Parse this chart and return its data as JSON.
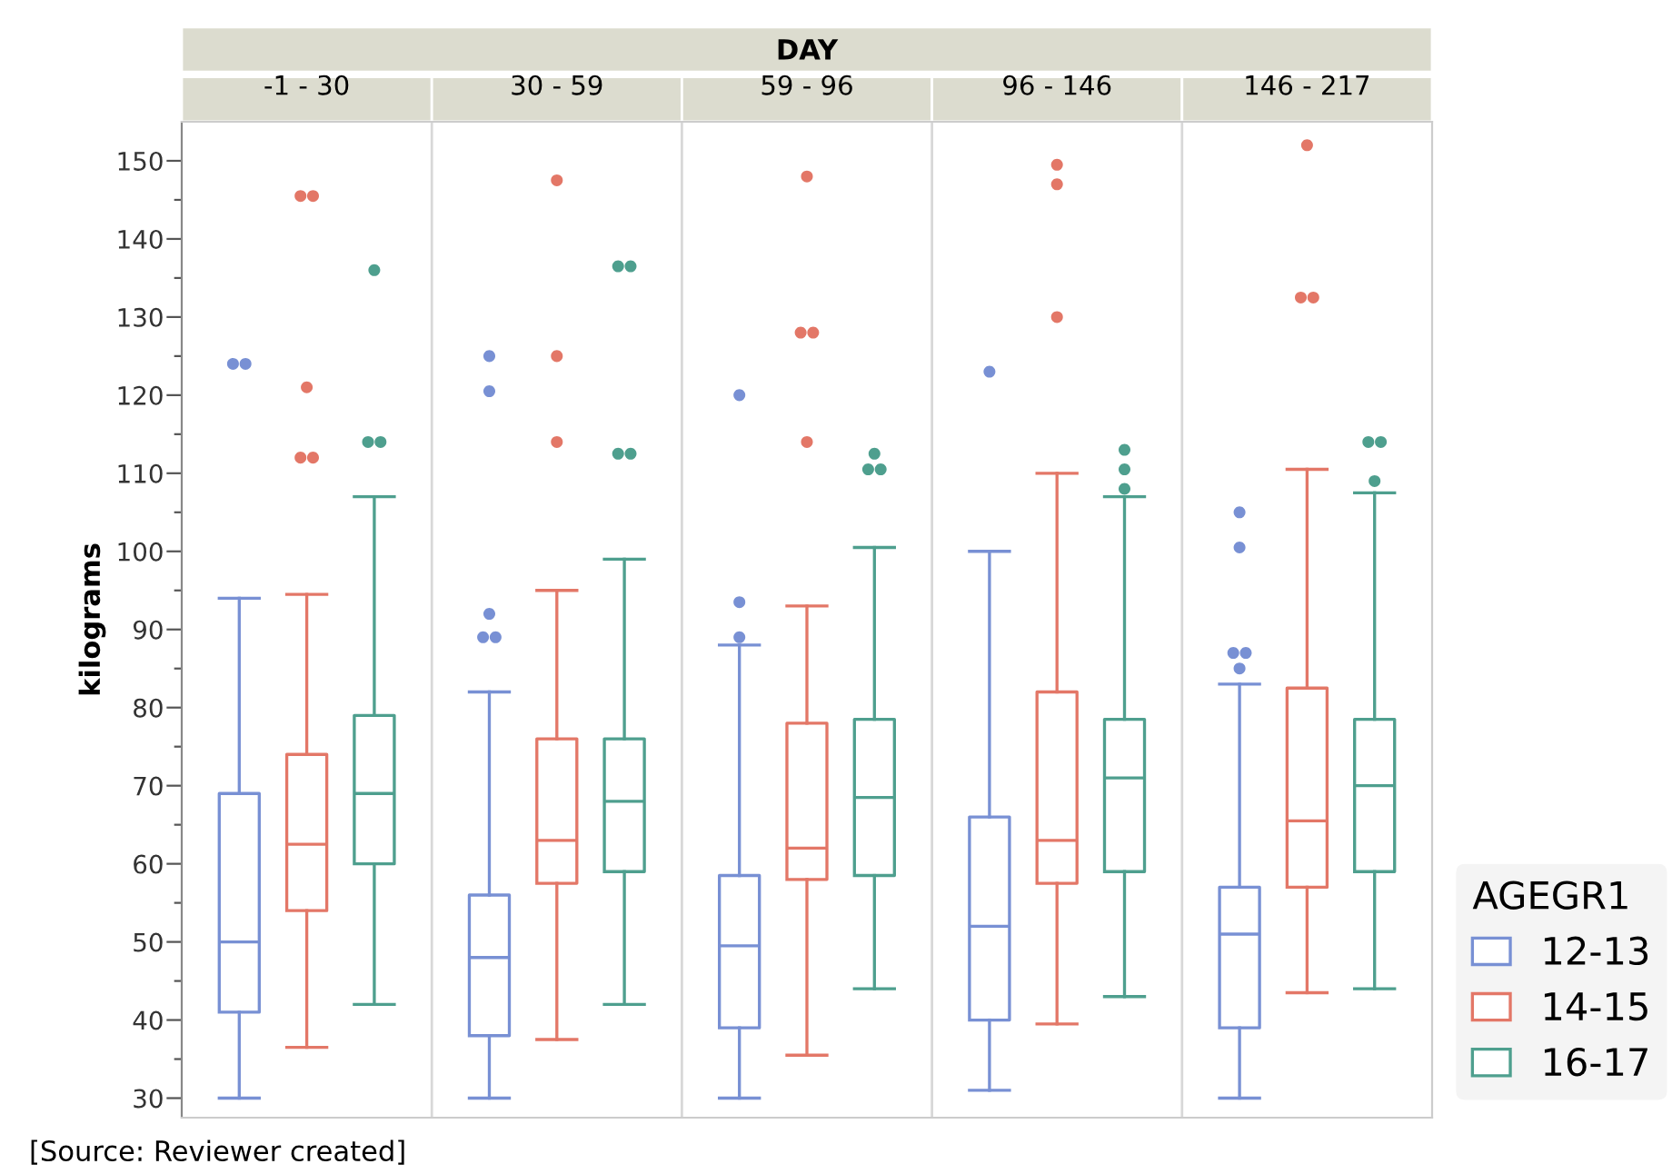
{
  "chart_data": {
    "type": "box",
    "xlabel": "DAY",
    "ylabel": "kilograms",
    "annotations": [
      "[Source: Reviewer created]"
    ],
    "categories": [
      "-1 - 30",
      "30 - 59",
      "59 - 96",
      "96 - 146",
      "146 - 217"
    ],
    "grid": "x",
    "legend": "right",
    "legend_title": "AGEGR1",
    "ylim": [
      27.5,
      155
    ],
    "yticks": [
      30,
      {
        "value": 35,
        "label": null
      },
      40,
      {
        "value": 45,
        "label": null
      },
      50,
      {
        "value": 55,
        "label": null
      },
      60,
      {
        "value": 65,
        "label": null
      },
      70,
      {
        "value": 75,
        "label": null
      },
      80,
      {
        "value": 85,
        "label": null
      },
      90,
      {
        "value": 95,
        "label": null
      },
      100,
      {
        "value": 105,
        "label": null
      },
      110,
      {
        "value": 115,
        "label": null
      },
      120,
      {
        "value": 125,
        "label": null
      },
      130,
      {
        "value": 135,
        "label": null
      },
      140,
      {
        "value": 145,
        "label": null
      },
      150
    ],
    "series": [
      {
        "name": "12-13",
        "color": "#7890d4",
        "boxes": [
          {
            "low": 30,
            "q1": 41,
            "median": 50,
            "q3": 69,
            "high": 94,
            "outliers": [
              124,
              124
            ]
          },
          {
            "low": 30,
            "q1": 38,
            "median": 48,
            "q3": 56,
            "high": 82,
            "outliers": [
              125,
              120.5,
              92,
              89,
              89
            ]
          },
          {
            "low": 30,
            "q1": 39,
            "median": 49.5,
            "q3": 58.5,
            "high": 88,
            "outliers": [
              120,
              93.5,
              89
            ]
          },
          {
            "low": 31,
            "q1": 40,
            "median": 52,
            "q3": 66,
            "high": 100,
            "outliers": [
              123
            ]
          },
          {
            "low": 30,
            "q1": 39,
            "median": 51,
            "q3": 57,
            "high": 83,
            "outliers": [
              105,
              100.5,
              87,
              87,
              85
            ]
          }
        ]
      },
      {
        "name": "14-15",
        "color": "#e37767",
        "boxes": [
          {
            "low": 36.5,
            "q1": 54,
            "median": 62.5,
            "q3": 74,
            "high": 94.5,
            "outliers": [
              145.5,
              145.5,
              121,
              112,
              112
            ]
          },
          {
            "low": 37.5,
            "q1": 57.5,
            "median": 63,
            "q3": 76,
            "high": 95,
            "outliers": [
              147.5,
              125,
              114
            ]
          },
          {
            "low": 35.5,
            "q1": 58,
            "median": 62,
            "q3": 78,
            "high": 93,
            "outliers": [
              148,
              128,
              128,
              114
            ]
          },
          {
            "low": 39.5,
            "q1": 57.5,
            "median": 63,
            "q3": 82,
            "high": 110,
            "outliers": [
              149.5,
              147,
              130
            ]
          },
          {
            "low": 43.5,
            "q1": 57,
            "median": 65.5,
            "q3": 82.5,
            "high": 110.5,
            "outliers": [
              152,
              132.5,
              132.5
            ]
          }
        ]
      },
      {
        "name": "16-17",
        "color": "#4e9f8e",
        "boxes": [
          {
            "low": 42,
            "q1": 60,
            "median": 69,
            "q3": 79,
            "high": 107,
            "outliers": [
              136,
              114,
              114
            ]
          },
          {
            "low": 42,
            "q1": 59,
            "median": 68,
            "q3": 76,
            "high": 99,
            "outliers": [
              136.5,
              136.5,
              112.5,
              112.5
            ]
          },
          {
            "low": 44,
            "q1": 58.5,
            "median": 68.5,
            "q3": 78.5,
            "high": 100.5,
            "outliers": [
              112.5,
              110.5,
              110.5
            ]
          },
          {
            "low": 43,
            "q1": 59,
            "median": 71,
            "q3": 78.5,
            "high": 107,
            "outliers": [
              113,
              110.5,
              108
            ]
          },
          {
            "low": 44,
            "q1": 59,
            "median": 70,
            "q3": 78.5,
            "high": 107.5,
            "outliers": [
              114,
              114,
              109
            ]
          }
        ]
      }
    ]
  }
}
